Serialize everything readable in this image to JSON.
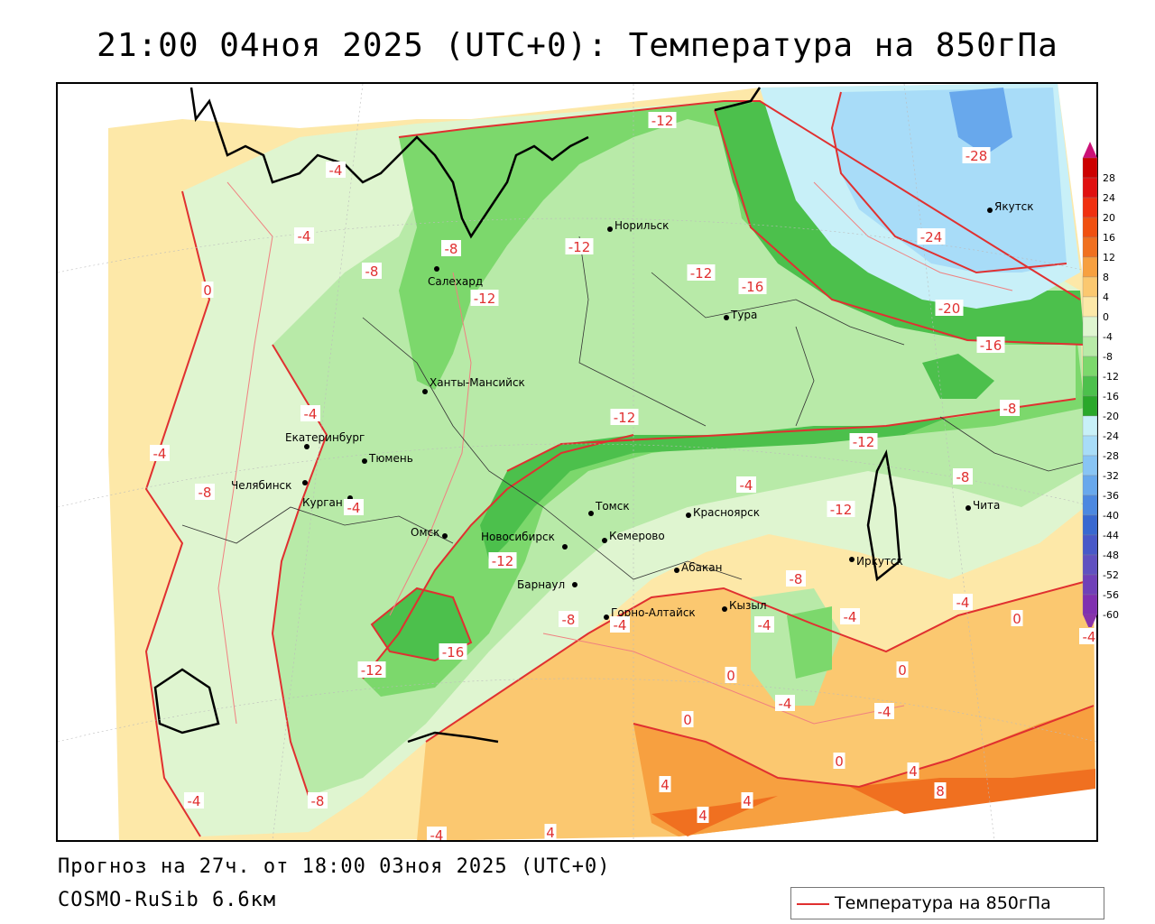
{
  "title": "21:00 04ноя 2025 (UTC+0): Температура на 850гПа",
  "footer": {
    "forecast": "Прогноз на 27ч. от 18:00 03ноя 2025 (UTC+0)",
    "model": "COSMO-RuSib 6.6км"
  },
  "legend": {
    "label": "Температура на 850гПа",
    "color": "#e03030"
  },
  "colorbar": {
    "ticks": [
      "28",
      "24",
      "20",
      "16",
      "12",
      "8",
      "4",
      "0",
      "-4",
      "-8",
      "-12",
      "-16",
      "-20",
      "-24",
      "-28",
      "-32",
      "-36",
      "-40",
      "-44",
      "-48",
      "-52",
      "-56",
      "-60"
    ],
    "colors": [
      "#cc0000",
      "#e01010",
      "#f03010",
      "#f05010",
      "#f07020",
      "#f7a040",
      "#fbc870",
      "#fde8a8",
      "#dff5d0",
      "#b8eaa8",
      "#7cd86c",
      "#4cc04c",
      "#2aa82a",
      "#c8f0f8",
      "#a8dcf8",
      "#88c4f4",
      "#68a8ec",
      "#4c88e0",
      "#3868d0",
      "#4858c8",
      "#6050c0",
      "#7040b8",
      "#8030b0"
    ],
    "top_arrow": "#cc1177",
    "bottom_arrow": "#8833aa"
  },
  "cities": [
    {
      "name": "Норильск"
    },
    {
      "name": "Салехард"
    },
    {
      "name": "Тура"
    },
    {
      "name": "Якутск"
    },
    {
      "name": "Ханты-Мансийск"
    },
    {
      "name": "Екатеринбург"
    },
    {
      "name": "Тюмень"
    },
    {
      "name": "Челябинск"
    },
    {
      "name": "Курган"
    },
    {
      "name": "Омск"
    },
    {
      "name": "Новосибирск"
    },
    {
      "name": "Томск"
    },
    {
      "name": "Кемерово"
    },
    {
      "name": "Красноярск"
    },
    {
      "name": "Барнаул"
    },
    {
      "name": "Абакан"
    },
    {
      "name": "Горно-Алтайск"
    },
    {
      "name": "Кызыл"
    },
    {
      "name": "Иркутск"
    },
    {
      "name": "Чита"
    }
  ],
  "isotherm_labels": [
    "-12",
    "-4",
    "-28",
    "-8",
    "-12",
    "-12",
    "-16",
    "-24",
    "-20",
    "-16",
    "-8",
    "-4",
    "-12",
    "-12",
    "-4",
    "-12",
    "-8",
    "0",
    "-4",
    "-8",
    "-12",
    "-8",
    "-4",
    "-12",
    "-16",
    "-12",
    "-8",
    "-4",
    "-4",
    "-8",
    "-4",
    "-4",
    "0",
    "0",
    "-4",
    "0",
    "-4",
    "-4",
    "0",
    "4",
    "4",
    "4",
    "4",
    "8",
    "-4",
    "-8",
    "-4",
    "-4",
    "0",
    "4"
  ]
}
